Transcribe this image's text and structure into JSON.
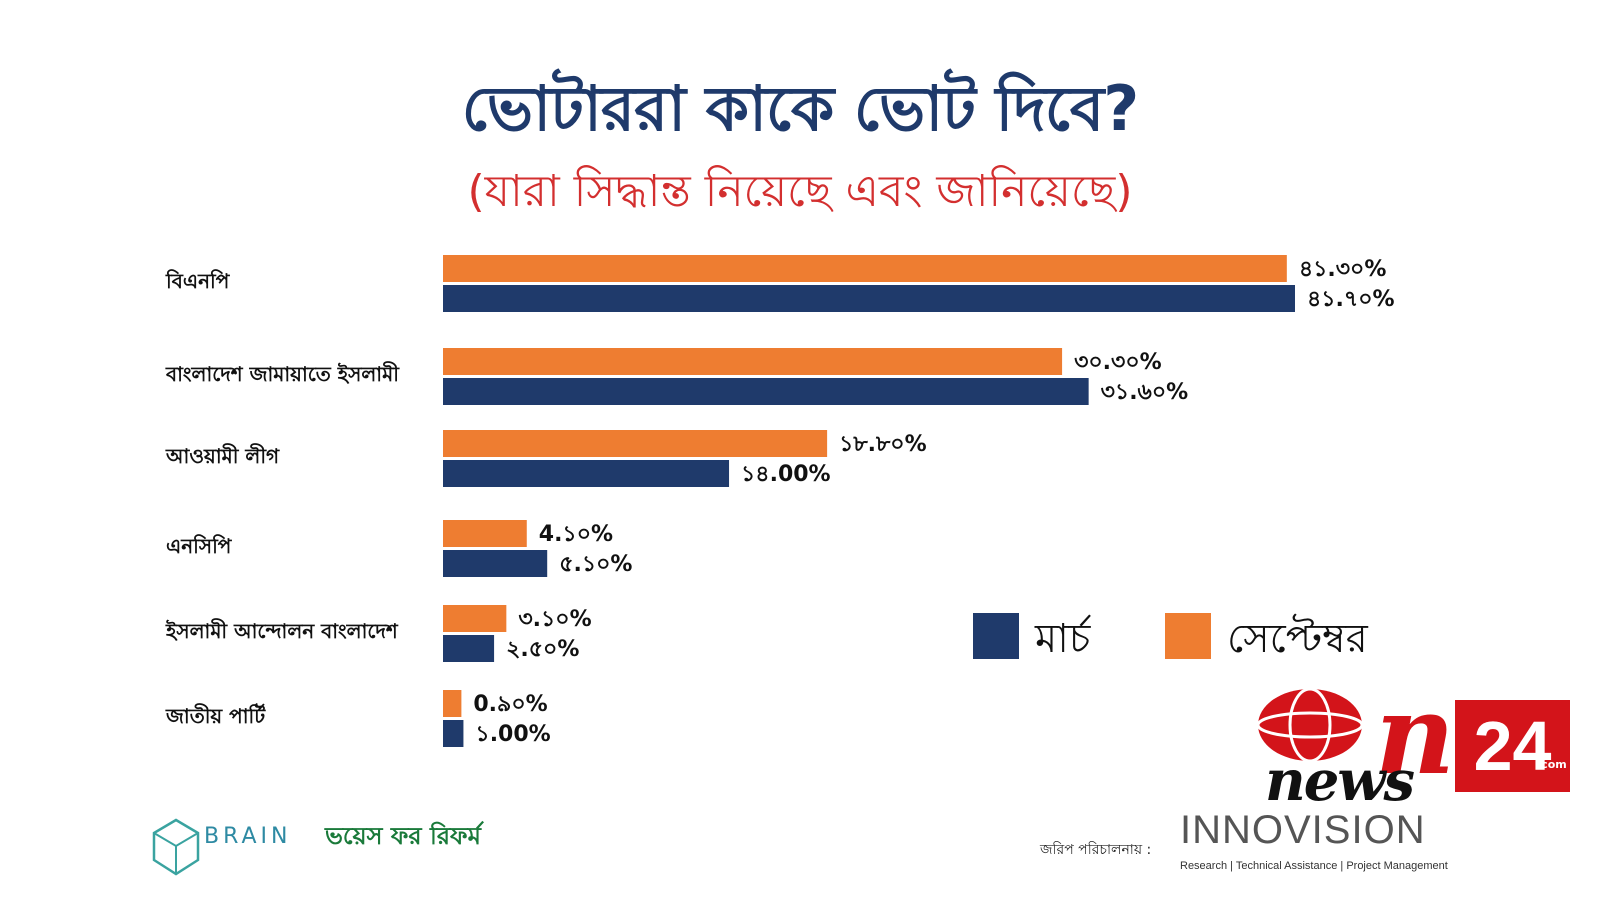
{
  "title": "ভোটাররা কাকে ভোট দিবে?",
  "subtitle": "(যারা সিদ্ধান্ত নিয়েছে এবং জানিয়েছে)",
  "colors": {
    "march": "#1f3a6b",
    "september": "#ee7d31",
    "title": "#1f3a6b",
    "subtitle": "#d32f2f"
  },
  "chart_data": {
    "type": "bar",
    "orientation": "horizontal",
    "categories": [
      "বিএনপি",
      "বাংলাদেশ জামায়াতে ইসলামী",
      "আওয়ামী লীগ",
      "এনসিপি",
      "ইসলামী আন্দোলন বাংলাদেশ",
      "জাতীয় পার্টি"
    ],
    "series": [
      {
        "name": "সেপ্টেম্বর",
        "values": [
          41.3,
          30.3,
          18.8,
          4.1,
          3.1,
          0.9
        ],
        "labels": [
          "৪১.৩০%",
          "৩০.৩০%",
          "১৮.৮০%",
          "4.১০%",
          "৩.১০%",
          "0.৯০%"
        ]
      },
      {
        "name": "মার্চ",
        "values": [
          41.7,
          31.6,
          14.0,
          5.1,
          2.5,
          1.0
        ],
        "labels": [
          "৪১.৭০%",
          "৩১.৬০%",
          "১৪.00%",
          "৫.১০%",
          "২.৫০%",
          "১.00%"
        ]
      }
    ],
    "legend": [
      "মার্চ",
      "সেপ্টেম্বর"
    ],
    "legend_position": "right",
    "xlim": [
      0,
      45
    ],
    "grid": false
  },
  "footer": {
    "brain": "BRAIN",
    "voices": "ভয়েস ফর রিফর্ম",
    "survey_label": "জরিপ পরিচালনায় :",
    "innovision": "INNOVISION",
    "innovision_tagline": "Research | Technical Assistance | Project Management",
    "news_logo_n": "n",
    "news_logo_news": "news",
    "news_logo_24": "24",
    "news_logo_com": ".com"
  }
}
